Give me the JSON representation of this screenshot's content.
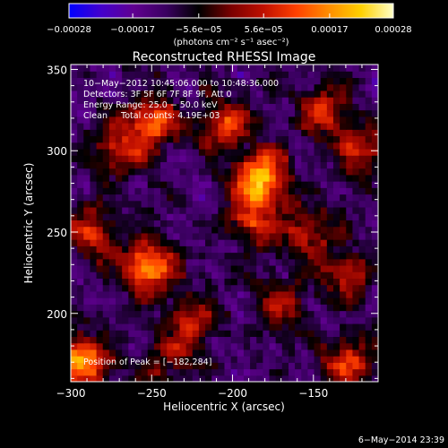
{
  "chart_data": {
    "type": "heatmap",
    "title": "Reconstructed RHESSI Image",
    "xlabel": "Heliocentric X (arcsec)",
    "ylabel": "Heliocentric Y (arcsec)",
    "xlim": [
      -300,
      -110
    ],
    "ylim": [
      158,
      353
    ],
    "x_ticks": [
      -300,
      -250,
      -200,
      -150
    ],
    "x_tick_labels": [
      "−300",
      "−250",
      "−200",
      "−150"
    ],
    "y_ticks": [
      200,
      250,
      300,
      350
    ],
    "y_tick_labels": [
      "200",
      "250",
      "300",
      "350"
    ],
    "colorbar": {
      "min": -0.00028,
      "max": 0.00028,
      "ticks": [
        -0.00028,
        -0.00017,
        -5.6e-05,
        5.6e-05,
        0.00017,
        0.00028
      ],
      "tick_labels": [
        "−0.00028",
        "−0.00017",
        "−5.6e−05",
        "5.6e−05",
        "0.00017",
        "0.00028"
      ],
      "unit_label": "(photons cm⁻² s⁻¹ asec⁻²)",
      "colors": [
        "#0000ff",
        "#4400cc",
        "#600090",
        "#3a0060",
        "#000000",
        "#7a0000",
        "#c01000",
        "#ff4000",
        "#ff8c00",
        "#ffd000",
        "#ffffc8"
      ]
    },
    "annotations": [
      "10−May−2012 10:45:06.000 to 10:48:36.000",
      "Detectors: 3F 5F 6F 7F 8F 9F, Att 0",
      "Energy Range: 25.0 − 50.0 keV",
      "Clean     Total counts: 4.19E+03"
    ],
    "peak_label": "Position of Peak = [−182,284]",
    "peak": {
      "x": -182,
      "y": 284
    },
    "sources": [
      {
        "x": -182,
        "y": 284,
        "amp": 1.0
      },
      {
        "x": -252,
        "y": 228,
        "amp": 0.85
      },
      {
        "x": -292,
        "y": 170,
        "amp": 0.85
      },
      {
        "x": -250,
        "y": 318,
        "amp": 0.65
      },
      {
        "x": -188,
        "y": 258,
        "amp": 0.55
      },
      {
        "x": -205,
        "y": 316,
        "amp": 0.6
      },
      {
        "x": -270,
        "y": 300,
        "amp": 0.5
      },
      {
        "x": -285,
        "y": 250,
        "amp": 0.55
      },
      {
        "x": -145,
        "y": 325,
        "amp": 0.55
      },
      {
        "x": -155,
        "y": 250,
        "amp": 0.5
      },
      {
        "x": -128,
        "y": 170,
        "amp": 0.55
      },
      {
        "x": -120,
        "y": 300,
        "amp": 0.5
      },
      {
        "x": -225,
        "y": 195,
        "amp": 0.45
      },
      {
        "x": -170,
        "y": 205,
        "amp": 0.4
      },
      {
        "x": -130,
        "y": 225,
        "amp": 0.45
      },
      {
        "x": -240,
        "y": 170,
        "amp": 0.35
      }
    ],
    "footer_date": "6−May−2014 23:39"
  }
}
